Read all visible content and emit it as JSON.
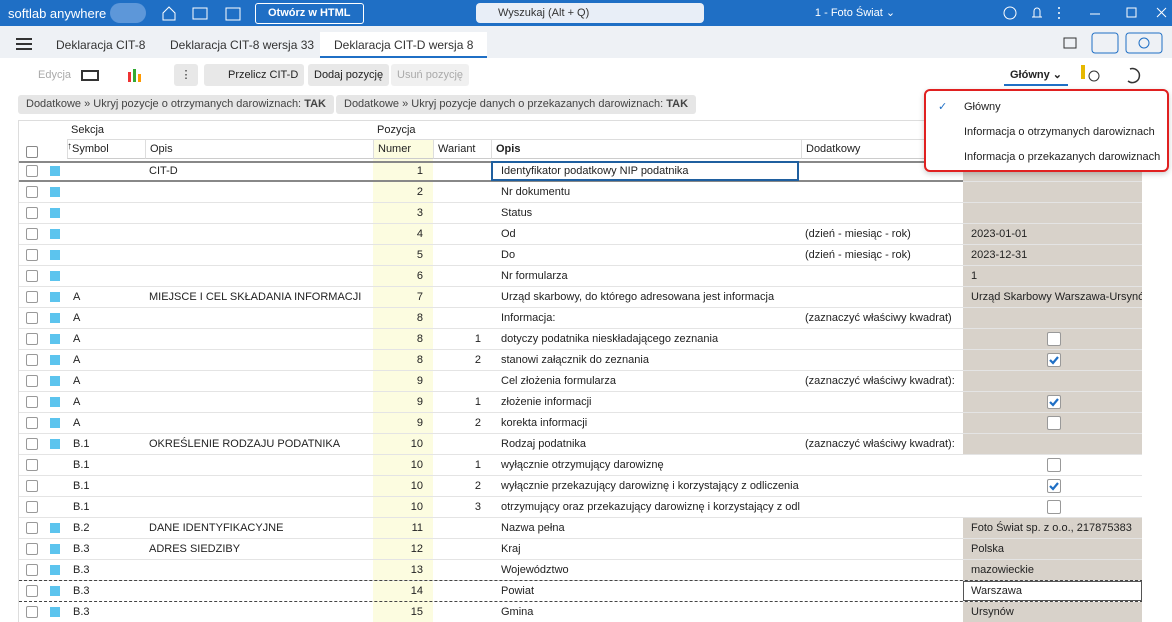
{
  "titlebar": {
    "app": "softlab anywhere",
    "open_html": "Otwórz w HTML",
    "search": "Wyszukaj (Alt + Q)",
    "company": "1 - Foto Świat"
  },
  "tabs": [
    "Deklaracja CIT-8",
    "Deklaracja CIT-8 wersja 33",
    "Deklaracja CIT-D wersja 8"
  ],
  "toolbar": {
    "edit": "Edycja",
    "recalc": "Przelicz CIT-D",
    "add": "Dodaj pozycję",
    "remove": "Usuń pozycję",
    "view": "Główny"
  },
  "filters": [
    {
      "label": "Dodatkowe » Ukryj pozycje o otrzymanych darowiznach:",
      "value": "TAK"
    },
    {
      "label": "Dodatkowe » Ukryj pozycje danych o przekazanych darowiznach:",
      "value": "TAK"
    }
  ],
  "table": {
    "groups": {
      "section": "Sekcja",
      "position": "Pozycja"
    },
    "columns": {
      "symbol": "Symbol",
      "section_desc": "Opis",
      "number": "Numer",
      "variant": "Wariant",
      "desc": "Opis",
      "extra": "Dodatkowy"
    },
    "rows": [
      {
        "section_desc": "CIT-D",
        "number": 1,
        "desc": "Identyfikator podatkowy NIP podatnika",
        "marker": true
      },
      {
        "number": 2,
        "desc": "Nr dokumentu",
        "marker": true
      },
      {
        "number": 3,
        "desc": "Status",
        "marker": true
      },
      {
        "number": 4,
        "desc": "Od",
        "extra": "(dzień - miesiąc - rok)",
        "value": "2023-01-01",
        "marker": true
      },
      {
        "number": 5,
        "desc": "Do",
        "extra": "(dzień - miesiąc - rok)",
        "value": "2023-12-31",
        "marker": true
      },
      {
        "number": 6,
        "desc": "Nr formularza",
        "value": "1",
        "marker": true
      },
      {
        "symbol": "A",
        "section_desc": "MIEJSCE I CEL SKŁADANIA INFORMACJI",
        "number": 7,
        "desc": "Urząd skarbowy, do którego adresowana jest informacja",
        "value": "Urząd Skarbowy Warszawa-Ursynó",
        "marker": true
      },
      {
        "symbol": "A",
        "number": 8,
        "desc": "Informacja:",
        "extra": "(zaznaczyć właściwy kwadrat)",
        "marker": true
      },
      {
        "symbol": "A",
        "number": 8,
        "variant": 1,
        "desc": "dotyczy podatnika nieskładającego zeznania",
        "checked": false,
        "marker": true
      },
      {
        "symbol": "A",
        "number": 8,
        "variant": 2,
        "desc": "stanowi załącznik do zeznania",
        "checked": true,
        "marker": true
      },
      {
        "symbol": "A",
        "number": 9,
        "desc": "Cel złożenia formularza",
        "extra": "(zaznaczyć właściwy kwadrat):",
        "marker": true
      },
      {
        "symbol": "A",
        "number": 9,
        "variant": 1,
        "desc": "złożenie informacji",
        "checked": true,
        "marker": true
      },
      {
        "symbol": "A",
        "number": 9,
        "variant": 2,
        "desc": "korekta informacji",
        "checked": false,
        "marker": true
      },
      {
        "symbol": "B.1",
        "section_desc": "OKREŚLENIE RODZAJU PODATNIKA",
        "number": 10,
        "desc": "Rodzaj podatnika",
        "extra": "(zaznaczyć właściwy kwadrat):",
        "marker": true
      },
      {
        "symbol": "B.1",
        "number": 10,
        "variant": 1,
        "desc": "wyłącznie otrzymujący darowiznę",
        "checked": false,
        "marker": false
      },
      {
        "symbol": "B.1",
        "number": 10,
        "variant": 2,
        "desc": "wyłącznie przekazujący darowiznę i korzystający z odliczenia",
        "checked": true,
        "marker": false
      },
      {
        "symbol": "B.1",
        "number": 10,
        "variant": 3,
        "desc": "otrzymujący oraz przekazujący darowiznę i korzystający z odl",
        "checked": false,
        "marker": false
      },
      {
        "symbol": "B.2",
        "section_desc": "DANE IDENTYFIKACYJNE",
        "number": 11,
        "desc": "Nazwa pełna",
        "value": "Foto Świat sp. z o.o., 217875383",
        "marker": true
      },
      {
        "symbol": "B.3",
        "section_desc": "ADRES SIEDZIBY",
        "number": 12,
        "desc": "Kraj",
        "value": "Polska",
        "marker": true
      },
      {
        "symbol": "B.3",
        "number": 13,
        "desc": "Województwo",
        "value": "mazowieckie",
        "marker": true
      },
      {
        "symbol": "B.3",
        "number": 14,
        "desc": "Powiat",
        "value": "Warszawa",
        "marker": true,
        "active": true
      },
      {
        "symbol": "B.3",
        "number": 15,
        "desc": "Gmina",
        "value": "Ursynów",
        "marker": true
      }
    ]
  },
  "dropdown": {
    "items": [
      "Główny",
      "Informacja o otrzymanych darowiznach",
      "Informacja o przekazanych darowiznach"
    ],
    "selected": 0
  }
}
